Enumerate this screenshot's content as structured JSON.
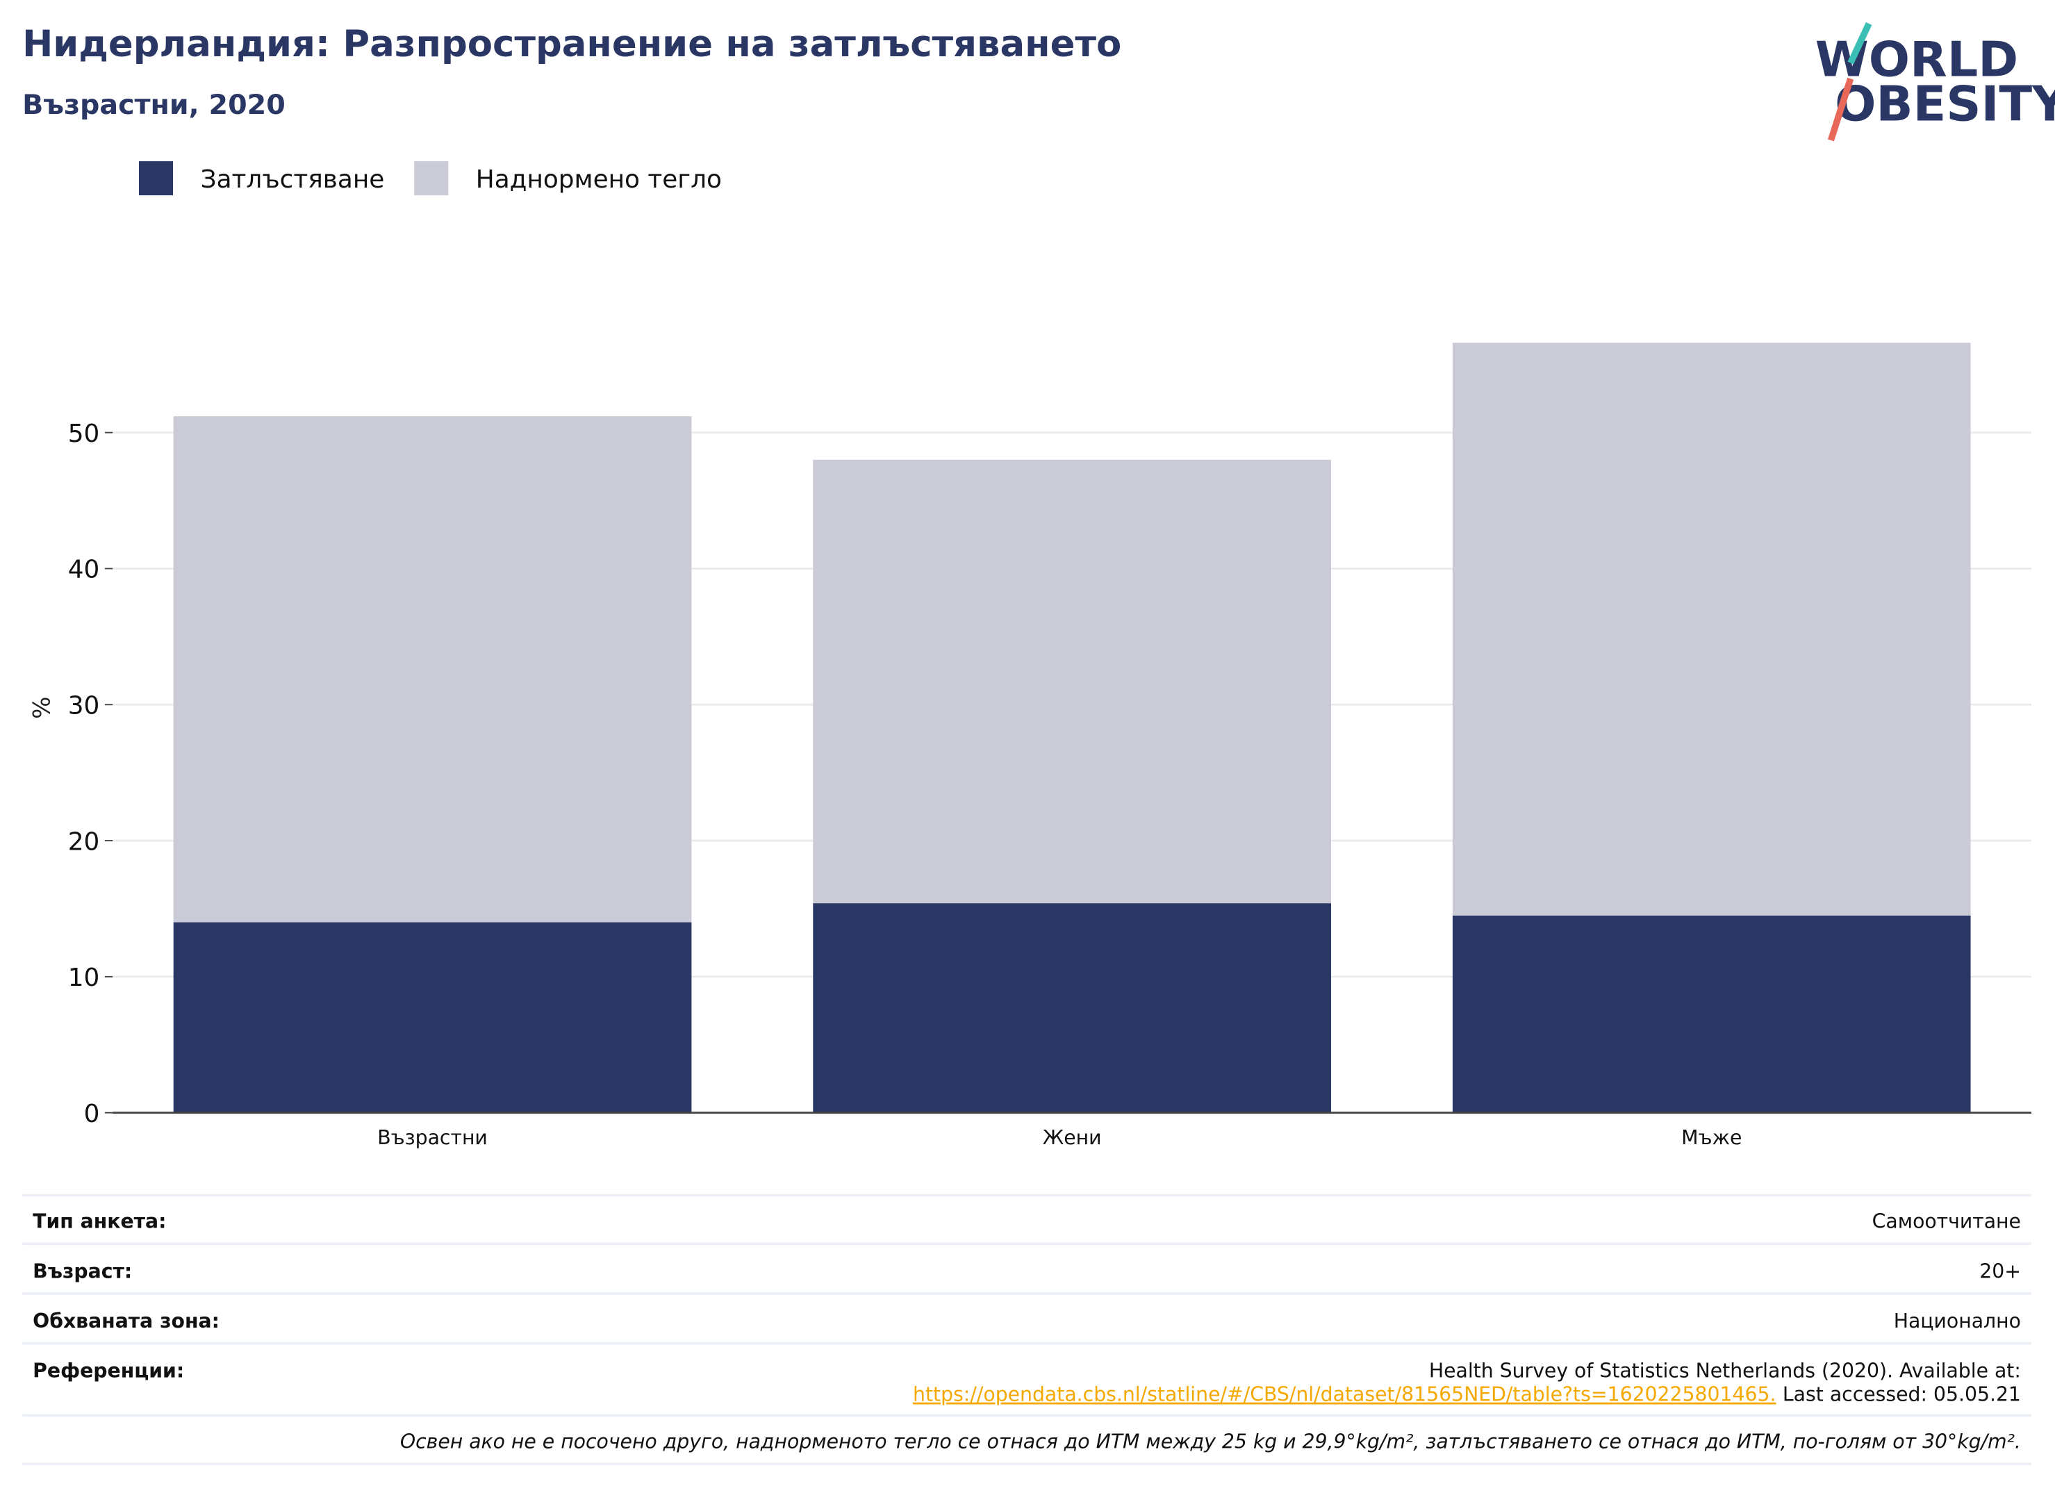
{
  "chart_data": {
    "type": "bar",
    "stacked": true,
    "title": "Нидерландия: Разпространение на затлъстяването",
    "subtitle": "Възрастни, 2020",
    "y_label": "%",
    "categories": [
      "Възрастни",
      "Жени",
      "Мъже"
    ],
    "series": [
      {
        "name": "Затлъстяване",
        "color": "#2a3764",
        "values": [
          14.0,
          15.4,
          14.5
        ]
      },
      {
        "name": "Наднормено тегло",
        "color": "#cacbd7",
        "values": [
          37.2,
          32.6,
          42.1
        ]
      }
    ],
    "ylim": [
      0,
      58
    ],
    "yticks": [
      0,
      10,
      20,
      30,
      40,
      50
    ],
    "grid": true
  },
  "logo": {
    "line1": "WORLD",
    "line2": "OBESITY"
  },
  "info_table": {
    "rows": [
      [
        "Тип анкета:",
        "Самоотчитане"
      ],
      [
        "Възраст:",
        "20+"
      ],
      [
        "Обхваната зона:",
        "Национално"
      ]
    ],
    "reference": {
      "label": "Референции:",
      "text": "Health Survey of Statistics Netherlands (2020). Available at:",
      "url": "https://opendata.cbs.nl/statline/#/CBS/nl/dataset/81565NED/table?ts=1620225801465.",
      "accessed": "Last accessed: 05.05.21"
    }
  },
  "footnote": "Освен ако не е посочено друго, наднорменото тегло се отнася до ИТМ между 25 kg и 29,9°kg/m², затлъстяването се отнася до ИТМ, по-голям от 30°kg/m²."
}
